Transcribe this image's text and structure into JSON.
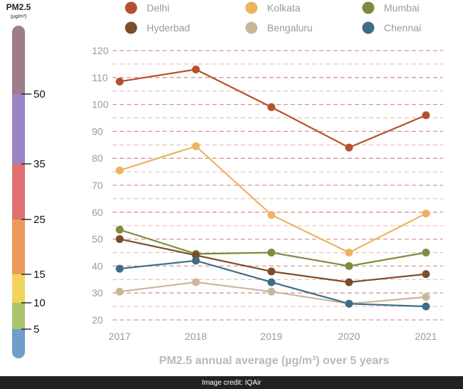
{
  "scale": {
    "title": "PM2.5",
    "unit": "(µg/m³)",
    "bands": [
      {
        "from": 0,
        "to": 5,
        "color": "#6f9ec9"
      },
      {
        "from": 5,
        "to": 10,
        "color": "#a9c46a"
      },
      {
        "from": 10,
        "to": 15,
        "color": "#f2d35b"
      },
      {
        "from": 15,
        "to": 25,
        "color": "#eb9a5e"
      },
      {
        "from": 25,
        "to": 35,
        "color": "#e07070"
      },
      {
        "from": 35,
        "to": 50,
        "color": "#9b85c4"
      },
      {
        "from": 50,
        "to": 60,
        "color": "#9e7c8a"
      }
    ],
    "ticks": [
      {
        "value": 5,
        "label": "5"
      },
      {
        "value": 10,
        "label": "10"
      },
      {
        "value": 15,
        "label": "15"
      },
      {
        "value": 25,
        "label": "25"
      },
      {
        "value": 35,
        "label": "35"
      },
      {
        "value": 50,
        "label": "50"
      }
    ]
  },
  "chart_data": {
    "type": "line",
    "title": "PM2.5 annual average (µg/m³) over 5 years",
    "x": [
      "2017",
      "2018",
      "2019",
      "2020",
      "2021"
    ],
    "ylim": [
      20,
      120
    ],
    "yticks": [
      20,
      30,
      40,
      50,
      60,
      70,
      80,
      90,
      100,
      110,
      120
    ],
    "grid": true,
    "legend_position": "top",
    "series": [
      {
        "name": "Delhi",
        "color": "#b5502e",
        "values": [
          108.5,
          113,
          99,
          84,
          96
        ]
      },
      {
        "name": "Kolkata",
        "color": "#edb361",
        "values": [
          75.5,
          84.5,
          59,
          45,
          59.5
        ]
      },
      {
        "name": "Mumbai",
        "color": "#7d8c3f",
        "values": [
          53.5,
          44.5,
          45,
          40,
          45
        ]
      },
      {
        "name": "Hyderbad",
        "color": "#7a4e2a",
        "values": [
          50,
          44,
          38,
          34,
          37
        ]
      },
      {
        "name": "Bengaluru",
        "color": "#cbb69c",
        "values": [
          30.5,
          34,
          30.5,
          26,
          28.5
        ]
      },
      {
        "name": "Chennai",
        "color": "#3e6e86",
        "values": [
          39,
          42,
          34,
          26,
          25
        ]
      }
    ]
  },
  "footer": {
    "credit": "Image credit: IQAir"
  }
}
